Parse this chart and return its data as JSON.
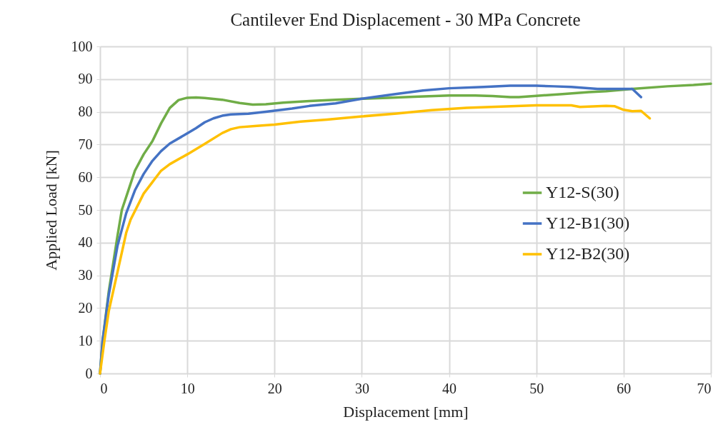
{
  "chart_data": {
    "type": "line",
    "title": "Cantilever End Displacement - 30 MPa Concrete",
    "xlabel": "Displacement [mm]",
    "ylabel": "Applied Load  [kN]",
    "xlim": [
      0,
      70
    ],
    "xticks": [
      0,
      10,
      20,
      30,
      40,
      50,
      60,
      70
    ],
    "ylim": [
      0,
      100
    ],
    "yticks": [
      0,
      10,
      20,
      30,
      40,
      50,
      60,
      70,
      80,
      90,
      100
    ],
    "grid": true,
    "legend": "right",
    "marker": "none",
    "line_style": "solid",
    "series": [
      {
        "name": "Y12-S(30)",
        "color": "#70ad47",
        "x": [
          0,
          0.3,
          1,
          2,
          2.5,
          3,
          3.5,
          4,
          5,
          6,
          7,
          8,
          9,
          10,
          11,
          12,
          14,
          16,
          17.5,
          19,
          21,
          24,
          27,
          30,
          33,
          36,
          40,
          43,
          45,
          47,
          48,
          50,
          53,
          56,
          58,
          61,
          65,
          68,
          70
        ],
        "values": [
          0,
          10,
          25,
          42,
          50,
          54,
          58,
          62,
          67,
          71,
          76.5,
          81.2,
          83.6,
          84.3,
          84.4,
          84.2,
          83.7,
          82.7,
          82.2,
          82.3,
          82.8,
          83.3,
          83.7,
          84,
          84.3,
          84.6,
          85,
          85,
          84.8,
          84.5,
          84.5,
          84.9,
          85.4,
          86,
          86.3,
          87,
          87.8,
          88.2,
          88.6
        ]
      },
      {
        "name": "Y12-B1(30)",
        "color": "#4472c4",
        "x": [
          0,
          0.3,
          1,
          2,
          3,
          4,
          5,
          6,
          7,
          8,
          10,
          11,
          12,
          13,
          14,
          15,
          17,
          19,
          22,
          24,
          27,
          30,
          34,
          37,
          40,
          44,
          47,
          50,
          52,
          54,
          57,
          61,
          62
        ],
        "values": [
          0,
          10,
          24,
          39,
          49,
          56,
          61,
          65,
          68,
          70.3,
          73.4,
          75,
          76.8,
          78,
          78.8,
          79.2,
          79.4,
          80,
          81,
          81.8,
          82.6,
          84,
          85.5,
          86.5,
          87.2,
          87.6,
          88,
          88,
          87.8,
          87.6,
          87,
          87,
          84.5
        ]
      },
      {
        "name": "Y12-B2(30)",
        "color": "#ffc000",
        "x": [
          0,
          0.5,
          1,
          2,
          3,
          3.5,
          5,
          6,
          7,
          8,
          10,
          12,
          14,
          15,
          16,
          18,
          20,
          23,
          26,
          30,
          34,
          38,
          42,
          46,
          50,
          54,
          55,
          58,
          59,
          60,
          61,
          62,
          63
        ],
        "values": [
          0,
          10,
          19,
          31,
          43,
          47,
          55,
          58.5,
          62,
          64,
          67,
          70.2,
          73.5,
          74.7,
          75.3,
          75.7,
          76.1,
          77,
          77.6,
          78.6,
          79.5,
          80.5,
          81.2,
          81.6,
          82,
          82,
          81.5,
          81.8,
          81.7,
          80.6,
          80.2,
          80.3,
          78
        ]
      }
    ]
  }
}
